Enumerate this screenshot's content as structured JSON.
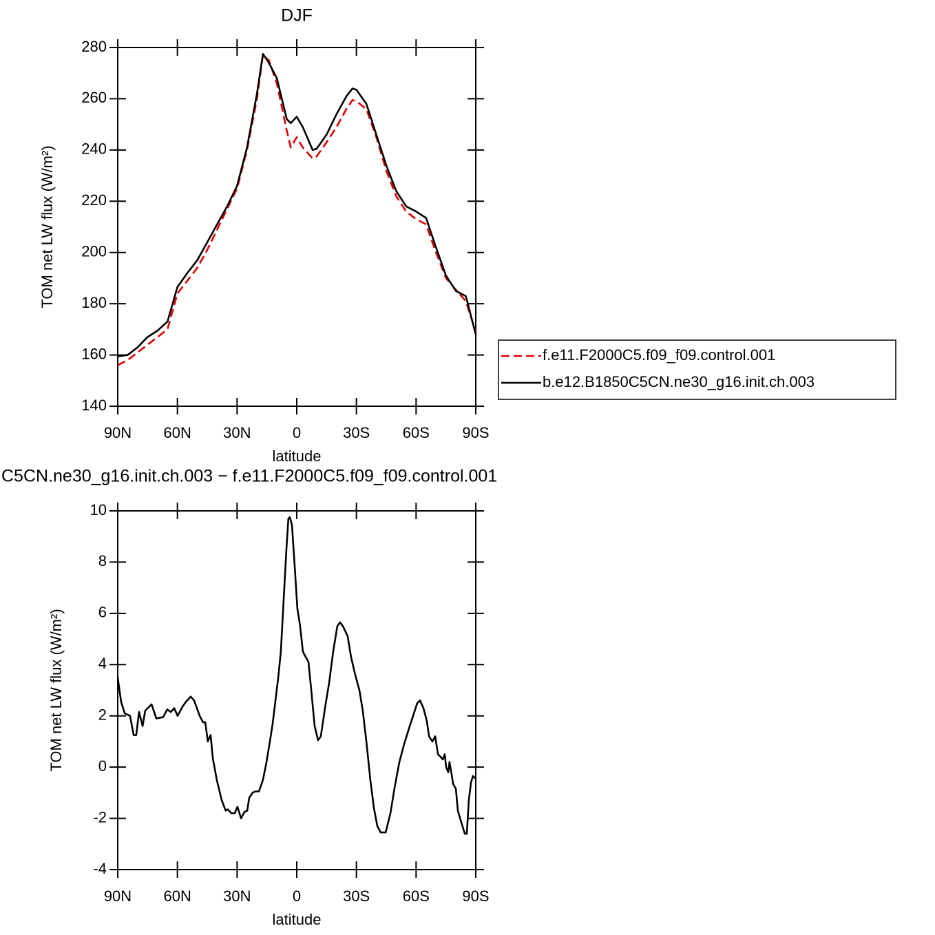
{
  "chart_data": [
    {
      "type": "line",
      "title": "DJF",
      "xlabel": "latitude",
      "ylabel": "TOM net LW flux (W/m²)",
      "x": [
        90,
        85,
        80,
        75,
        70,
        65,
        60,
        55,
        50,
        45,
        40,
        35,
        30,
        25,
        20,
        17,
        14,
        10,
        5,
        3,
        0,
        -3,
        -8,
        -10,
        -15,
        -20,
        -25,
        -28,
        -30,
        -35,
        -40,
        -45,
        -50,
        -55,
        -60,
        -65,
        -70,
        -75,
        -80,
        -85,
        -90
      ],
      "series": [
        {
          "name": "f.e11.F2000C5.f09_f09.control.001",
          "color": "#e00000",
          "dashed": true,
          "values": [
            156,
            158,
            161,
            164,
            167,
            170,
            184,
            189,
            194,
            201,
            209,
            217,
            225,
            240,
            260,
            277,
            275,
            266,
            247.5,
            241,
            245,
            241,
            236.7,
            237.5,
            243,
            249,
            256,
            259.5,
            259,
            256,
            245,
            232,
            222,
            216,
            213,
            211,
            200,
            190,
            185.5,
            181,
            169
          ]
        },
        {
          "name": "b.e12.B1850C5CN.ne30_g16.init.ch.003",
          "color": "#000000",
          "dashed": false,
          "values": [
            159.5,
            160,
            163,
            167,
            169.5,
            173,
            186.5,
            192,
            197,
            204,
            211,
            218,
            226,
            241,
            262,
            277.5,
            274,
            268,
            252,
            250.5,
            253,
            249,
            240,
            240.5,
            246,
            254,
            261,
            264,
            263.5,
            258,
            246,
            234,
            224,
            218,
            216,
            213.5,
            202,
            191,
            185,
            183,
            168
          ]
        }
      ],
      "xlim": [
        90,
        -90
      ],
      "xticks": [
        {
          "value": 90,
          "label": "90N"
        },
        {
          "value": 60,
          "label": "60N"
        },
        {
          "value": 30,
          "label": "30N"
        },
        0,
        {
          "value": -30,
          "label": "30S"
        },
        {
          "value": -60,
          "label": "60S"
        },
        {
          "value": -90,
          "label": "90S"
        }
      ],
      "ylim": [
        140,
        280
      ],
      "yticks": [
        140,
        160,
        180,
        200,
        220,
        240,
        260,
        280
      ],
      "legend": "right"
    },
    {
      "type": "line",
      "title": "C5CN.ne30_g16.init.ch.003 − f.e11.F2000C5.f09_f09.control.001",
      "xlabel": "latitude",
      "ylabel": "TOM net LW flux (W/m²)",
      "x": [
        90,
        88.3,
        86.5,
        83.8,
        82.0,
        80.7,
        79.3,
        77.5,
        76.2,
        73.0,
        70.6,
        67.2,
        65.1,
        63.3,
        61.6,
        59.9,
        57.5,
        55.7,
        53.3,
        51.6,
        48.8,
        47.1,
        46.0,
        44.7,
        43.3,
        42.2,
        40.2,
        39.1,
        37.7,
        35.7,
        34.6,
        32.9,
        31.2,
        29.8,
        28.0,
        26.3,
        24.9,
        23.9,
        22.2,
        20.8,
        19.0,
        17.0,
        15.2,
        13.5,
        12.1,
        10.7,
        9.3,
        8.0,
        6.6,
        5.2,
        4.2,
        3.5,
        2.4,
        1.0,
        -0.3,
        -1.7,
        -3.1,
        -4.5,
        -5.9,
        -7.3,
        -9.0,
        -10.7,
        -12.1,
        -14.2,
        -16.3,
        -18.3,
        -20.4,
        -21.8,
        -23.2,
        -25.6,
        -27.3,
        -29.4,
        -31.5,
        -33.2,
        -35.0,
        -37.0,
        -38.8,
        -40.5,
        -42.2,
        -44.7,
        -47.1,
        -49.2,
        -51.6,
        -54.0,
        -56.4,
        -58.5,
        -60.6,
        -62.0,
        -63.7,
        -65.4,
        -66.5,
        -68.2,
        -69.6,
        -71.0,
        -72.3,
        -73.4,
        -74.4,
        -75.1,
        -76.2,
        -76.8,
        -77.9,
        -78.6,
        -80.0,
        -81.0,
        -82.7,
        -84.5,
        -85.5,
        -86.5,
        -87.6,
        -88.6,
        -90
      ],
      "values": [
        3.5,
        2.55,
        2.1,
        2.0,
        1.25,
        1.25,
        2.15,
        1.6,
        2.2,
        2.45,
        1.9,
        1.95,
        2.25,
        2.15,
        2.3,
        2.0,
        2.35,
        2.55,
        2.75,
        2.6,
        2.0,
        1.75,
        1.75,
        1.0,
        1.25,
        0.35,
        -0.5,
        -0.85,
        -1.3,
        -1.7,
        -1.65,
        -1.8,
        -1.8,
        -1.55,
        -2.0,
        -1.75,
        -1.7,
        -1.2,
        -1.0,
        -0.95,
        -0.95,
        -0.5,
        0.2,
        1.0,
        1.7,
        2.6,
        3.5,
        4.5,
        6.5,
        8.5,
        9.7,
        9.75,
        9.45,
        7.8,
        6.2,
        5.5,
        4.5,
        4.3,
        4.1,
        3.0,
        1.6,
        1.05,
        1.2,
        2.3,
        3.3,
        4.5,
        5.5,
        5.65,
        5.5,
        5.1,
        4.3,
        3.6,
        3.0,
        2.2,
        1.0,
        -0.5,
        -1.6,
        -2.3,
        -2.55,
        -2.55,
        -1.8,
        -0.8,
        0.2,
        0.9,
        1.5,
        2.0,
        2.5,
        2.6,
        2.3,
        1.8,
        1.2,
        1.0,
        1.2,
        0.5,
        0.4,
        0.3,
        0.5,
        0.0,
        -0.2,
        0.2,
        -0.3,
        -0.65,
        -0.85,
        -1.7,
        -2.15,
        -2.6,
        -2.6,
        -1.3,
        -0.6,
        -0.35,
        -0.45
      ],
      "color": "#000000",
      "xlim": [
        90,
        -90
      ],
      "xticks": [
        {
          "value": 90,
          "label": "90N"
        },
        {
          "value": 60,
          "label": "60N"
        },
        {
          "value": 30,
          "label": "30N"
        },
        0,
        {
          "value": -30,
          "label": "30S"
        },
        {
          "value": -60,
          "label": "60S"
        },
        {
          "value": -90,
          "label": "90S"
        }
      ],
      "ylim": [
        -4,
        10
      ],
      "yticks": [
        -4,
        -2,
        0,
        2,
        4,
        6,
        8,
        10
      ]
    }
  ]
}
